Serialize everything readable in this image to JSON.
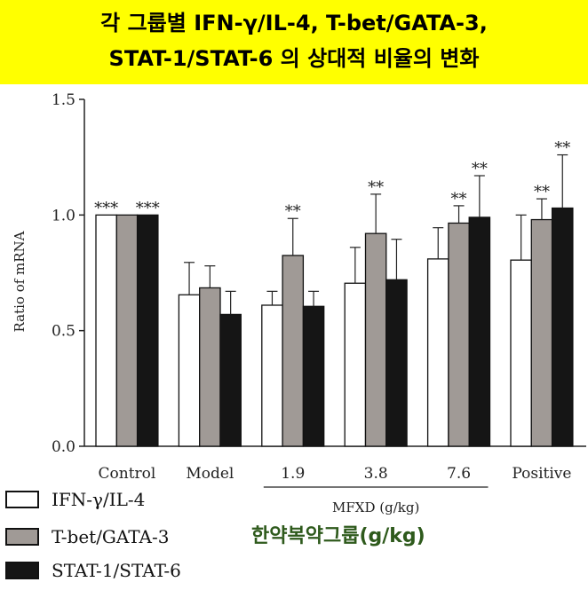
{
  "title": {
    "line1": "각 그룹별 IFN-γ/IL-4, T-bet/GATA-3,",
    "line2": "STAT-1/STAT-6 의 상대적 비율의 변화"
  },
  "colors": {
    "banner": "#ffff00",
    "series": [
      "#ffffff",
      "#a09a96",
      "#151515"
    ],
    "group_label": "#2e5a1c"
  },
  "group_label": "한약복약그룹(g/kg)",
  "chart_data": {
    "type": "bar",
    "title": "각 그룹별 IFN-γ/IL-4, T-bet/GATA-3, STAT-1/STAT-6 의 상대적 비율의 변화",
    "ylabel": "Ratio of mRNA",
    "xlabel": "",
    "ylim": [
      0,
      1.5
    ],
    "yticks": [
      "0.0",
      "0.5",
      "1.0",
      "1.5"
    ],
    "ytick_values": [
      0,
      0.5,
      1.0,
      1.5
    ],
    "categories": [
      "Control",
      "Model",
      "1.9",
      "3.8",
      "7.6",
      "Positive"
    ],
    "bracket_label": "MFXD (g/kg)",
    "bracket_categories": [
      "1.9",
      "3.8",
      "7.6"
    ],
    "series": [
      {
        "name": "IFN-γ/IL-4",
        "values": [
          1.0,
          0.655,
          0.61,
          0.705,
          0.81,
          0.805
        ],
        "errors": [
          0,
          0.14,
          0.06,
          0.155,
          0.135,
          0.195
        ],
        "annotations": [
          "***",
          "",
          "",
          "",
          "",
          ""
        ]
      },
      {
        "name": "T-bet/GATA-3",
        "values": [
          1.0,
          0.685,
          0.825,
          0.92,
          0.965,
          0.98
        ],
        "errors": [
          0,
          0.095,
          0.16,
          0.17,
          0.075,
          0.09
        ],
        "annotations": [
          "",
          "",
          "**",
          "**",
          "**",
          "**"
        ]
      },
      {
        "name": "STAT-1/STAT-6",
        "values": [
          1.0,
          0.57,
          0.605,
          0.72,
          0.99,
          1.03
        ],
        "errors": [
          0,
          0.1,
          0.065,
          0.175,
          0.18,
          0.23
        ],
        "annotations": [
          "***",
          "",
          "",
          "",
          "**",
          "**"
        ]
      }
    ]
  }
}
